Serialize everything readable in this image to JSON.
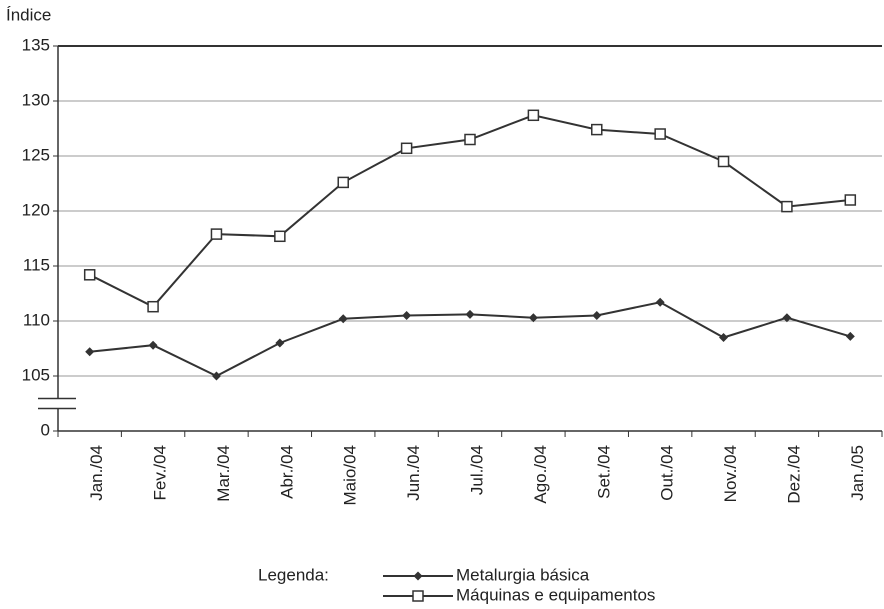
{
  "chart_data": {
    "type": "line",
    "y_label": "Índice",
    "legend_title": "Legenda:",
    "categories": [
      "Jan./04",
      "Fev./04",
      "Mar./04",
      "Abr./04",
      "Maio/04",
      "Jun./04",
      "Jul./04",
      "Ago./04",
      "Set./04",
      "Out./04",
      "Nov./04",
      "Dez./04",
      "Jan./05"
    ],
    "series": [
      {
        "name": "Metalurgia básica",
        "color": "#333333",
        "marker": "diamond",
        "values": [
          107.2,
          107.8,
          105.0,
          108.0,
          110.2,
          110.5,
          110.6,
          110.3,
          110.5,
          111.7,
          108.5,
          110.3,
          108.6
        ]
      },
      {
        "name": "Máquinas e equipamentos",
        "color": "#333333",
        "marker": "square",
        "values": [
          114.2,
          111.3,
          117.9,
          117.7,
          122.6,
          125.7,
          126.5,
          128.7,
          127.4,
          127.0,
          124.5,
          120.4,
          121.0
        ]
      }
    ],
    "ylim": [
      0,
      135
    ],
    "yticks": [
      0,
      105,
      110,
      115,
      120,
      125,
      130,
      135
    ],
    "axis_break": true,
    "grid": true
  }
}
